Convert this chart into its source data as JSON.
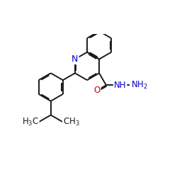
{
  "bg_color": "#ffffff",
  "bond_color": "#1a1a1a",
  "N_color": "#0000cc",
  "O_color": "#cc0000",
  "lw": 1.4,
  "dbo": 0.035,
  "fs": 8.5,
  "fig_w": 2.5,
  "fig_h": 2.5,
  "dpi": 100,
  "xlim": [
    -0.5,
    5.8
  ],
  "ylim": [
    -1.9,
    2.0
  ]
}
